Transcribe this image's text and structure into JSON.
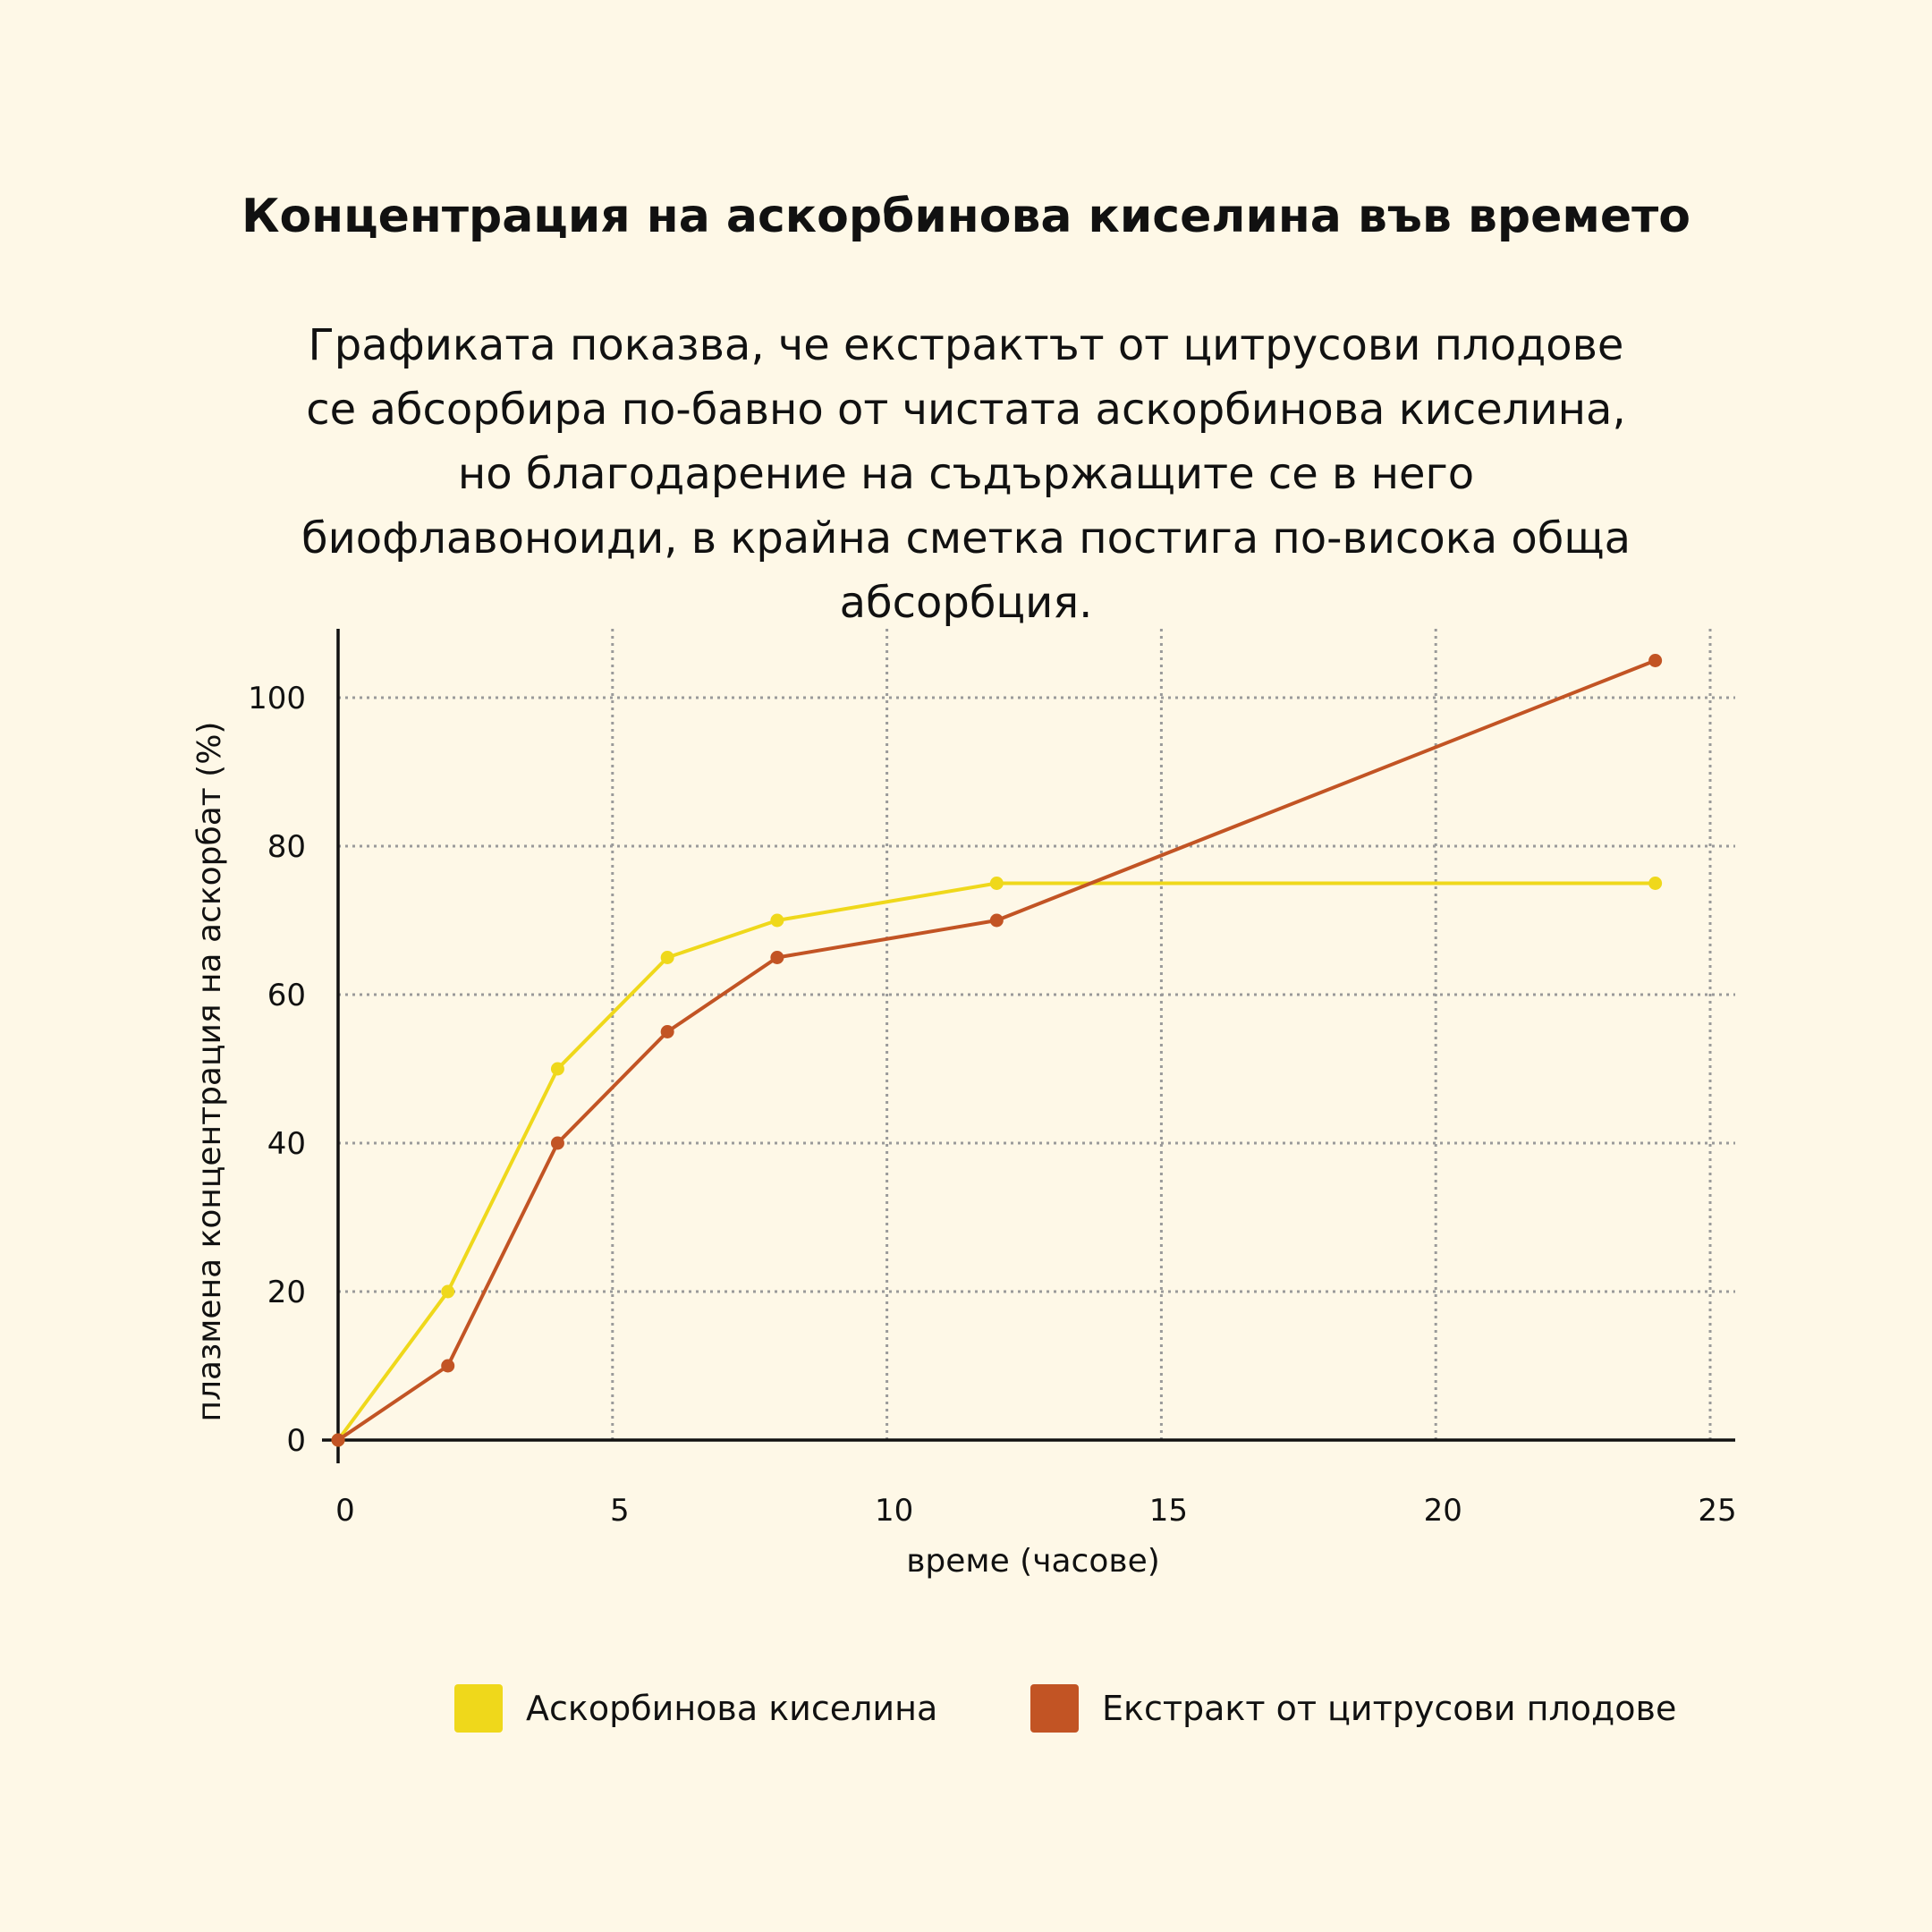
{
  "title": "Концентрация на аскорбинова киселина във времето",
  "subtitle": "Графиката показва, че екстрактът от цитрусови плодове се абсорбира по-бавно от чистата аскорбинова киселина, но благодарение на съдържащите се в него биофлавоноиди, в крайна сметка постига по-висока обща абсорбция.",
  "colors": {
    "background": "#FEF8E7",
    "grid": "#9A9A9A",
    "axis": "#111111"
  },
  "chart_data": {
    "type": "line",
    "xlabel": "време (часове)",
    "ylabel": "плазмена концентрация на аскорбат (%)",
    "xlim": [
      0,
      25
    ],
    "ylim": [
      0,
      105
    ],
    "xticks": [
      "0",
      "5",
      "10",
      "15",
      "20",
      "25"
    ],
    "yticks": [
      "0",
      "20",
      "40",
      "60",
      "80",
      "100"
    ],
    "grid": true,
    "legend_position": "bottom",
    "series": [
      {
        "name": "Аскорбинова киселина",
        "color": "#EFD81B",
        "x": [
          0,
          2,
          4,
          6,
          8,
          12,
          24
        ],
        "y": [
          0,
          20,
          50,
          65,
          70,
          75,
          75
        ]
      },
      {
        "name": "Екстракт от цитрусови плодове",
        "color": "#C25424",
        "x": [
          0,
          2,
          4,
          6,
          8,
          12,
          24
        ],
        "y": [
          0,
          10,
          40,
          55,
          65,
          70,
          105
        ]
      }
    ]
  }
}
